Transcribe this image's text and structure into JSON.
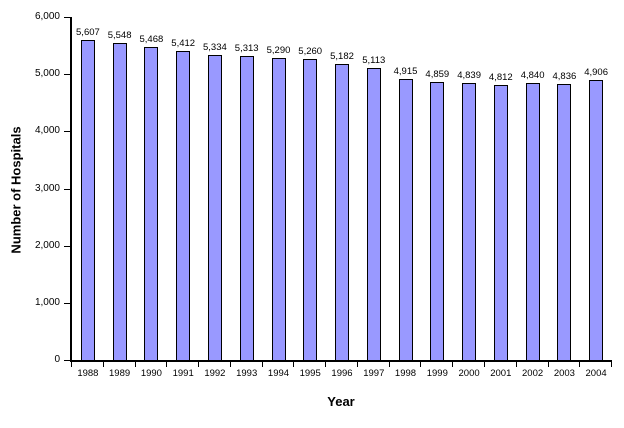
{
  "chart_data": {
    "type": "bar",
    "title": "",
    "xlabel": "Year",
    "ylabel": "Number of Hospitals",
    "categories": [
      "1988",
      "1989",
      "1990",
      "1991",
      "1992",
      "1993",
      "1994",
      "1995",
      "1996",
      "1997",
      "1998",
      "1999",
      "2000",
      "2001",
      "2002",
      "2003",
      "2004"
    ],
    "values": [
      5607,
      5548,
      5468,
      5412,
      5334,
      5313,
      5290,
      5260,
      5182,
      5113,
      4915,
      4859,
      4839,
      4812,
      4840,
      4836,
      4906
    ],
    "data_labels": [
      "5,607",
      "5,548",
      "5,468",
      "5,412",
      "5,334",
      "5,313",
      "5,290",
      "5,260",
      "5,182",
      "5,113",
      "4,915",
      "4,859",
      "4,839",
      "4,812",
      "4,840",
      "4,836",
      "4,906"
    ],
    "ylim": [
      0,
      6000
    ],
    "ytick_step": 1000,
    "ytick_labels": [
      "0",
      "1,000",
      "2,000",
      "3,000",
      "4,000",
      "5,000",
      "6,000"
    ],
    "grid": false,
    "legend": false,
    "bar_color": "#9999FF",
    "bar_border_color": "#000000",
    "axis_color": "#000000",
    "text_color": "#000000",
    "background_color": "#FFFFFF"
  }
}
